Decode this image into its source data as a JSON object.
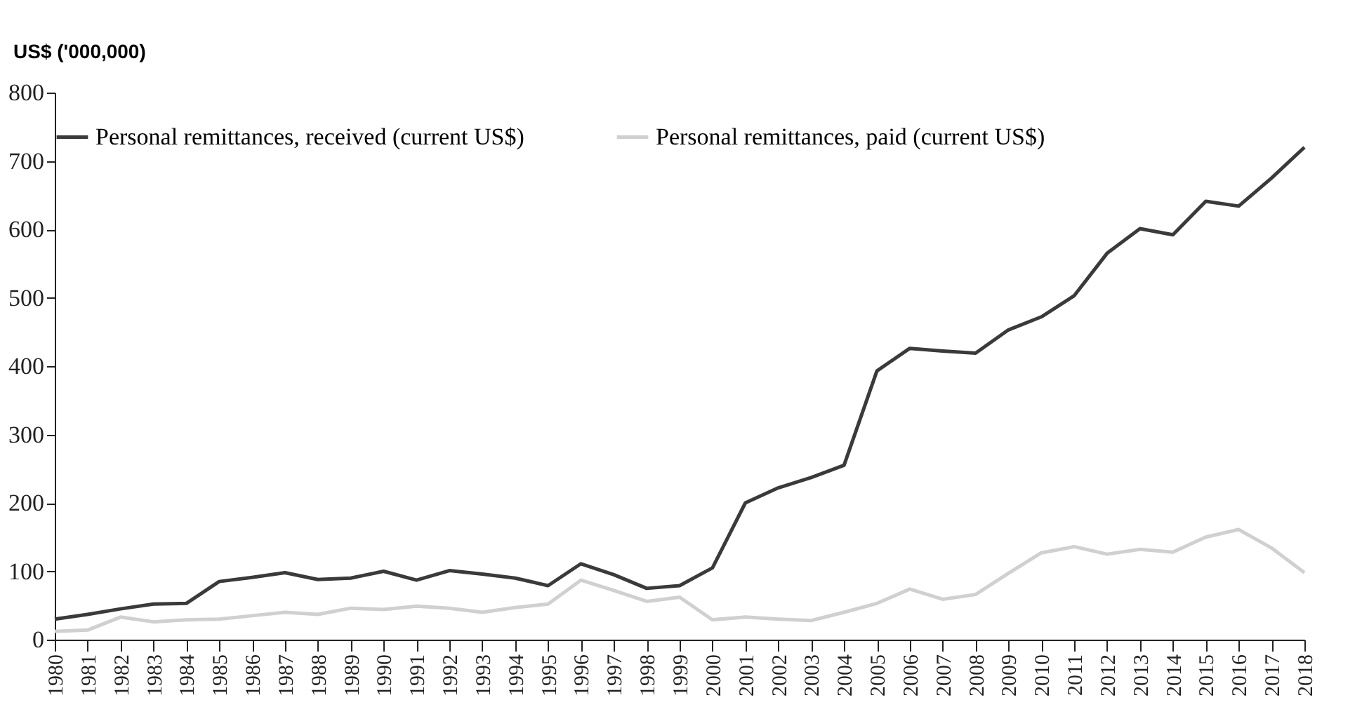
{
  "chart_data": {
    "type": "line",
    "ylabel": "US$ ('000,000)",
    "x": [
      1980,
      1981,
      1982,
      1983,
      1984,
      1985,
      1986,
      1987,
      1988,
      1989,
      1990,
      1991,
      1992,
      1993,
      1994,
      1995,
      1996,
      1997,
      1998,
      1999,
      2000,
      2001,
      2002,
      2003,
      2004,
      2005,
      2006,
      2007,
      2008,
      2009,
      2010,
      2011,
      2012,
      2013,
      2014,
      2015,
      2016,
      2017,
      2018
    ],
    "series": [
      {
        "name": "Personal remittances, received (current US$)",
        "color": "#3a3a3a",
        "values": [
          30,
          37,
          45,
          52,
          53,
          85,
          91,
          98,
          88,
          90,
          100,
          87,
          101,
          96,
          90,
          79,
          111,
          95,
          75,
          79,
          105,
          200,
          222,
          237,
          255,
          393,
          426,
          422,
          419,
          453,
          472,
          503,
          565,
          601,
          592,
          641,
          634,
          675,
          720
        ]
      },
      {
        "name": "Personal remittances, paid (current US$)",
        "color": "#d0d0d0",
        "values": [
          12,
          14,
          33,
          26,
          29,
          30,
          35,
          40,
          37,
          46,
          44,
          49,
          46,
          40,
          47,
          52,
          87,
          72,
          56,
          62,
          29,
          33,
          30,
          28,
          40,
          53,
          74,
          59,
          66,
          97,
          127,
          136,
          125,
          132,
          128,
          150,
          161,
          134,
          98
        ]
      }
    ],
    "xlim": [
      1980,
      2018
    ],
    "xticks": [
      1980,
      1981,
      1982,
      1983,
      1984,
      1985,
      1986,
      1987,
      1988,
      1989,
      1990,
      1991,
      1992,
      1993,
      1994,
      1995,
      1996,
      1997,
      1998,
      1999,
      2000,
      2001,
      2002,
      2003,
      2004,
      2005,
      2006,
      2007,
      2008,
      2009,
      2010,
      2011,
      2012,
      2013,
      2014,
      2015,
      2016,
      2017,
      2018
    ],
    "ylim": [
      0,
      800
    ],
    "yticks": [
      0,
      100,
      200,
      300,
      400,
      500,
      600,
      700,
      800
    ],
    "grid": false,
    "legend": "top",
    "marker": "none",
    "line_style": "solid"
  }
}
